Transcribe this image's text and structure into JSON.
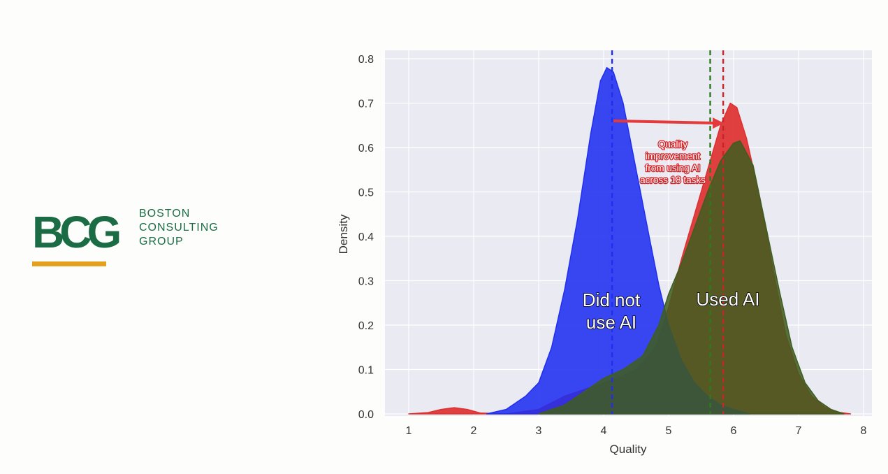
{
  "logo": {
    "letters": "BCG",
    "line1": "BOSTON",
    "line2": "CONSULTING",
    "line3": "GROUP",
    "green": "#1b6b44",
    "gold": "#e3a11f"
  },
  "chart_data": {
    "type": "area",
    "xlabel": "Quality",
    "ylabel": "Density",
    "xlim": [
      0.6,
      8.1
    ],
    "ylim": [
      0,
      0.82
    ],
    "xticks": [
      1,
      2,
      3,
      4,
      5,
      6,
      7,
      8
    ],
    "yticks": [
      0.0,
      0.1,
      0.2,
      0.3,
      0.4,
      0.5,
      0.6,
      0.7,
      0.8
    ],
    "grid": true,
    "series": [
      {
        "name": "Did not use AI",
        "color": "#1f2ff0",
        "mean_line": 4.13,
        "points": [
          [
            2.2,
            0
          ],
          [
            2.5,
            0.01
          ],
          [
            2.8,
            0.04
          ],
          [
            3.0,
            0.07
          ],
          [
            3.2,
            0.15
          ],
          [
            3.4,
            0.28
          ],
          [
            3.6,
            0.44
          ],
          [
            3.8,
            0.63
          ],
          [
            3.95,
            0.75
          ],
          [
            4.05,
            0.78
          ],
          [
            4.15,
            0.77
          ],
          [
            4.3,
            0.7
          ],
          [
            4.5,
            0.55
          ],
          [
            4.7,
            0.4
          ],
          [
            4.85,
            0.29
          ],
          [
            5.0,
            0.2
          ],
          [
            5.2,
            0.12
          ],
          [
            5.4,
            0.07
          ],
          [
            5.6,
            0.04
          ],
          [
            5.8,
            0.02
          ],
          [
            6.0,
            0.01
          ],
          [
            6.25,
            0
          ]
        ]
      },
      {
        "name": "Used AI",
        "color": "#dd3030",
        "mean_line": 5.84,
        "points": [
          [
            1.0,
            0
          ],
          [
            1.3,
            0.003
          ],
          [
            1.5,
            0.01
          ],
          [
            1.7,
            0.014
          ],
          [
            1.9,
            0.01
          ],
          [
            2.1,
            0.002
          ],
          [
            2.5,
            0
          ],
          [
            3.0,
            0.01
          ],
          [
            3.4,
            0.04
          ],
          [
            3.8,
            0.06
          ],
          [
            4.2,
            0.08
          ],
          [
            4.5,
            0.1
          ],
          [
            4.8,
            0.15
          ],
          [
            5.0,
            0.24
          ],
          [
            5.2,
            0.35
          ],
          [
            5.4,
            0.45
          ],
          [
            5.6,
            0.55
          ],
          [
            5.8,
            0.65
          ],
          [
            5.95,
            0.7
          ],
          [
            6.05,
            0.69
          ],
          [
            6.2,
            0.62
          ],
          [
            6.4,
            0.49
          ],
          [
            6.6,
            0.33
          ],
          [
            6.8,
            0.18
          ],
          [
            7.0,
            0.09
          ],
          [
            7.2,
            0.04
          ],
          [
            7.4,
            0.015
          ],
          [
            7.6,
            0.004
          ],
          [
            7.8,
            0
          ]
        ]
      },
      {
        "name": "",
        "color": "#3f5d1f",
        "mean_line": 5.64,
        "points": [
          [
            3.0,
            0
          ],
          [
            3.4,
            0.02
          ],
          [
            3.7,
            0.05
          ],
          [
            4.0,
            0.08
          ],
          [
            4.3,
            0.1
          ],
          [
            4.6,
            0.13
          ],
          [
            4.85,
            0.2
          ],
          [
            5.0,
            0.27
          ],
          [
            5.2,
            0.34
          ],
          [
            5.4,
            0.42
          ],
          [
            5.6,
            0.5
          ],
          [
            5.8,
            0.57
          ],
          [
            6.0,
            0.61
          ],
          [
            6.1,
            0.615
          ],
          [
            6.3,
            0.56
          ],
          [
            6.5,
            0.42
          ],
          [
            6.7,
            0.28
          ],
          [
            6.9,
            0.15
          ],
          [
            7.1,
            0.07
          ],
          [
            7.3,
            0.03
          ],
          [
            7.5,
            0.01
          ],
          [
            7.7,
            0
          ]
        ]
      }
    ],
    "annotations": {
      "did_not_line1": "Did not",
      "did_not_line2": "use AI",
      "used_ai": "Used AI",
      "arrow_from": [
        4.15,
        0.66
      ],
      "arrow_to": [
        5.85,
        0.655
      ],
      "quality_lines": [
        "Quality",
        "improvement",
        "from using AI",
        "across 18 tasks"
      ]
    }
  }
}
